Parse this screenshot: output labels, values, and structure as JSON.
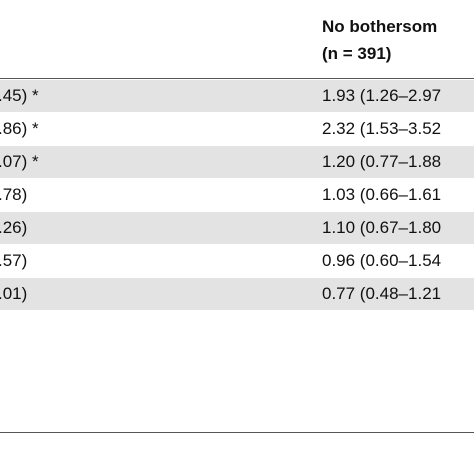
{
  "table": {
    "header": [
      "No bothersom",
      "(n = 391)"
    ],
    "rows": [
      [
        ".45) *",
        "1.93 (1.26–2.97"
      ],
      [
        ".86) *",
        "2.32 (1.53–3.52"
      ],
      [
        ".07) *",
        "1.20 (0.77–1.88"
      ],
      [
        ".78)",
        "1.03 (0.66–1.61"
      ],
      [
        ".26)",
        "1.10 (0.67–1.80"
      ],
      [
        ".57)",
        "0.96 (0.60–1.54"
      ],
      [
        ".01)",
        "0.77 (0.48–1.21"
      ]
    ]
  }
}
